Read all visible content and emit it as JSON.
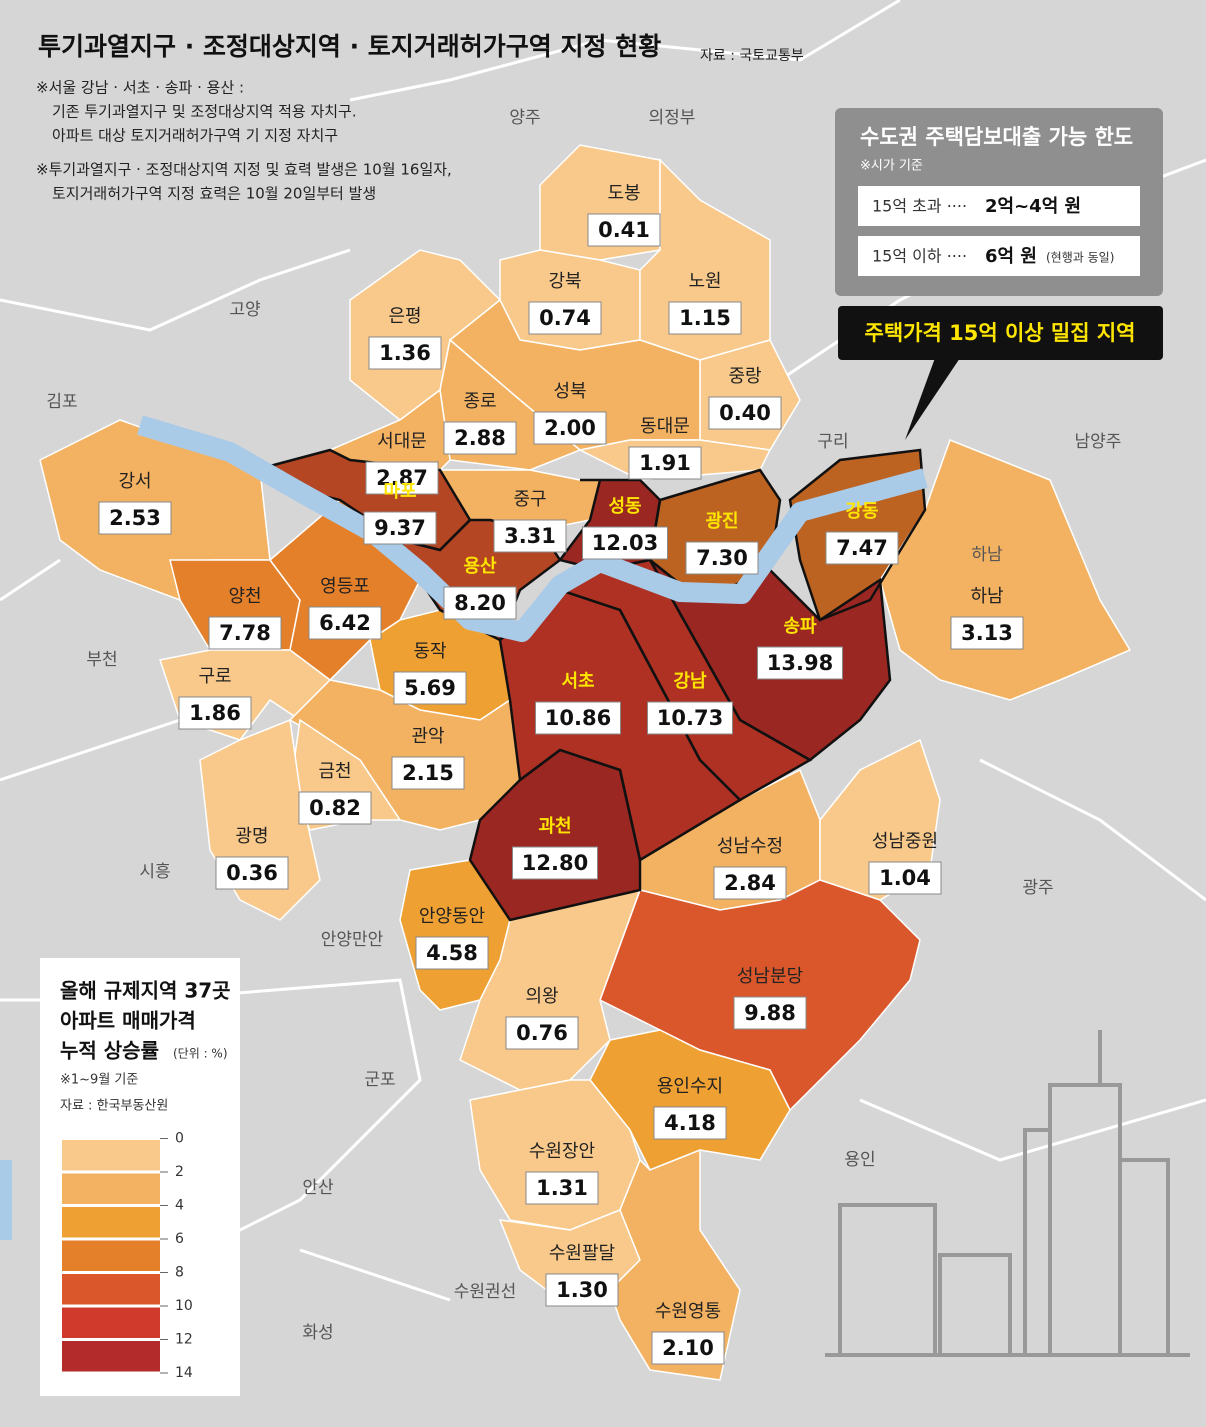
{
  "title": "투기과열지구 · 조정대상지역 · 토지거래허가구역 지정 현황",
  "source": "자료 : 국토교통부",
  "notes": [
    "※서울 강남 · 서초 · 송파 · 용산 :",
    "기존 투기과열지구 및 조정대상지역 적용 자치구.",
    "아파트 대상 토지거래허가구역 기 지정 자치구",
    "※투기과열지구 · 조정대상지역 지정 및 효력 발생은 10월 16일자,",
    "토지거래허가구역 지정 효력은 10월 20일부터 발생"
  ],
  "loan_box": {
    "title": "수도권 주택담보대출 가능 한도",
    "note": "※시가 기준",
    "rows": [
      {
        "condition": "15억 초과 ····",
        "limit": "2억~4억 원"
      },
      {
        "condition": "15억 이하 ····",
        "limit": "6억 원",
        "remark": "(현행과 동일)"
      }
    ]
  },
  "callout": "주택가격 15억 이상 밀집 지역",
  "legend": {
    "title": [
      "올해 규제지역 37곳",
      "아파트 매매가격",
      "누적 상승률"
    ],
    "unit": "(단위 : %)",
    "note": "※1~9월 기준",
    "source": "자료 : 한국부동산원",
    "bins": [
      0,
      2,
      4,
      6,
      8,
      10,
      12,
      14
    ],
    "colors": [
      "#f8c98a",
      "#f3b262",
      "#efa033",
      "#e47f2a",
      "#d9572b",
      "#cf3a2c",
      "#b32b2a"
    ]
  },
  "districts": [
    {
      "name": "도봉",
      "value": 0.41
    },
    {
      "name": "강북",
      "value": 0.74
    },
    {
      "name": "노원",
      "value": 1.15
    },
    {
      "name": "은평",
      "value": 1.36
    },
    {
      "name": "중랑",
      "value": 0.4,
      "value_label": "0.40"
    },
    {
      "name": "성북",
      "value": 2,
      "value_label": "2.00"
    },
    {
      "name": "종로",
      "value": 2.88
    },
    {
      "name": "동대문",
      "value": 1.91
    },
    {
      "name": "서대문",
      "value": 2.87
    },
    {
      "name": "강서",
      "value": 2.53
    },
    {
      "name": "마포",
      "value": 9.37,
      "highlight": true
    },
    {
      "name": "중구",
      "value": 3.31
    },
    {
      "name": "성동",
      "value": 12.03,
      "highlight": true
    },
    {
      "name": "광진",
      "value": 7.3,
      "value_label": "7.30",
      "highlight": true
    },
    {
      "name": "강동",
      "value": 7.47,
      "highlight": true
    },
    {
      "name": "양천",
      "value": 7.78
    },
    {
      "name": "영등포",
      "value": 6.42
    },
    {
      "name": "용산",
      "value": 8.2,
      "value_label": "8.20",
      "highlight": true
    },
    {
      "name": "하남",
      "value": 3.13
    },
    {
      "name": "송파",
      "value": 13.98,
      "highlight": true
    },
    {
      "name": "동작",
      "value": 5.69
    },
    {
      "name": "서초",
      "value": 10.86,
      "highlight": true
    },
    {
      "name": "강남",
      "value": 10.73,
      "highlight": true
    },
    {
      "name": "구로",
      "value": 1.86
    },
    {
      "name": "관악",
      "value": 2.15
    },
    {
      "name": "금천",
      "value": 0.82
    },
    {
      "name": "광명",
      "value": 0.36
    },
    {
      "name": "과천",
      "value": 12.8,
      "value_label": "12.80",
      "highlight": true
    },
    {
      "name": "성남수정",
      "value": 2.84
    },
    {
      "name": "성남중원",
      "value": 1.04
    },
    {
      "name": "안양동안",
      "value": 4.58
    },
    {
      "name": "성남분당",
      "value": 9.88
    },
    {
      "name": "의왕",
      "value": 0.76
    },
    {
      "name": "용인수지",
      "value": 4.18
    },
    {
      "name": "수원장안",
      "value": 1.31
    },
    {
      "name": "수원팔달",
      "value": 1.3,
      "value_label": "1.30"
    },
    {
      "name": "수원영통",
      "value": 2.1,
      "value_label": "2.10"
    }
  ],
  "neighbors": [
    "양주",
    "의정부",
    "고양",
    "김포",
    "구리",
    "남양주",
    "부천",
    "하남",
    "시흥",
    "광주",
    "안양만안",
    "군포",
    "안산",
    "용인",
    "수원권선",
    "화성"
  ]
}
